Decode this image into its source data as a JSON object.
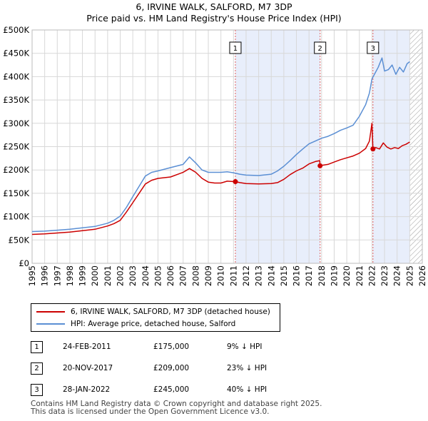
{
  "chart_data": {
    "type": "line",
    "title": "6, IRVINE WALK, SALFORD, M7 3DP",
    "subtitle": "Price paid vs. HM Land Registry's House Price Index (HPI)",
    "xlabel": "",
    "ylabel": "",
    "xlim": [
      1995,
      2026
    ],
    "ylim": [
      0,
      500000
    ],
    "y_ticks": [
      0,
      50000,
      100000,
      150000,
      200000,
      250000,
      300000,
      350000,
      400000,
      450000,
      500000
    ],
    "y_tick_labels": [
      "£0",
      "£50K",
      "£100K",
      "£150K",
      "£200K",
      "£250K",
      "£300K",
      "£350K",
      "£400K",
      "£450K",
      "£500K"
    ],
    "x_ticks": [
      1995,
      1996,
      1997,
      1998,
      1999,
      2000,
      2001,
      2002,
      2003,
      2004,
      2005,
      2006,
      2007,
      2008,
      2009,
      2010,
      2011,
      2012,
      2013,
      2014,
      2015,
      2016,
      2017,
      2018,
      2019,
      2020,
      2021,
      2022,
      2023,
      2024,
      2025,
      2026
    ],
    "x_tick_labels": [
      "1995",
      "1996",
      "1997",
      "1998",
      "1999",
      "2000",
      "2001",
      "2002",
      "2003",
      "2004",
      "2005",
      "2006",
      "2007",
      "2008",
      "2009",
      "2010",
      "2011",
      "2012",
      "2013",
      "2014",
      "2015",
      "2016",
      "2017",
      "2018",
      "2019",
      "2020",
      "2021",
      "2022",
      "2023",
      "2024",
      "2025",
      "2026"
    ],
    "grid": true,
    "shaded_periods": [
      [
        2011.15,
        2017.88
      ],
      [
        2022.08,
        2025.0
      ]
    ],
    "hatched_from": 2025.0,
    "series": [
      {
        "name": "6, IRVINE WALK, SALFORD, M7 3DP (detached house)",
        "color": "#cc0000",
        "x": [
          1995.0,
          1996.0,
          1997.0,
          1998.0,
          1999.0,
          2000.0,
          2001.0,
          2001.5,
          2002.0,
          2002.5,
          2003.0,
          2003.5,
          2004.0,
          2004.5,
          2005.0,
          2006.0,
          2007.0,
          2007.5,
          2008.0,
          2008.5,
          2009.0,
          2009.5,
          2010.0,
          2010.5,
          2011.15,
          2011.5,
          2012.0,
          2013.0,
          2014.0,
          2014.5,
          2015.0,
          2015.5,
          2016.0,
          2016.5,
          2017.0,
          2017.5,
          2017.85,
          2017.88,
          2018.0,
          2018.5,
          2019.0,
          2019.5,
          2020.0,
          2020.5,
          2021.0,
          2021.5,
          2021.8,
          2022.0,
          2022.08,
          2022.3,
          2022.6,
          2022.9,
          2023.2,
          2023.5,
          2023.8,
          2024.1,
          2024.4,
          2024.7,
          2025.0
        ],
        "y": [
          62000,
          63000,
          65000,
          67000,
          70000,
          73000,
          80000,
          85000,
          92000,
          110000,
          130000,
          150000,
          170000,
          178000,
          182000,
          185000,
          195000,
          203000,
          195000,
          182000,
          174000,
          172000,
          172000,
          176000,
          175000,
          173000,
          171000,
          170000,
          171000,
          173000,
          180000,
          190000,
          198000,
          204000,
          213000,
          218000,
          220000,
          209000,
          210000,
          212000,
          217000,
          222000,
          226000,
          230000,
          236000,
          246000,
          262000,
          300000,
          245000,
          248000,
          245000,
          258000,
          249000,
          245000,
          248000,
          246000,
          252000,
          255000,
          260000
        ]
      },
      {
        "name": "HPI: Average price, detached house, Salford",
        "color": "#5b8fd4",
        "x": [
          1995.0,
          1996.0,
          1997.0,
          1998.0,
          1999.0,
          2000.0,
          2001.0,
          2001.5,
          2002.0,
          2002.5,
          2003.0,
          2003.5,
          2004.0,
          2004.5,
          2005.0,
          2006.0,
          2007.0,
          2007.5,
          2008.0,
          2008.5,
          2009.0,
          2009.5,
          2010.0,
          2010.5,
          2011.0,
          2011.5,
          2012.0,
          2013.0,
          2014.0,
          2014.5,
          2015.0,
          2015.5,
          2016.0,
          2016.5,
          2017.0,
          2017.5,
          2018.0,
          2018.5,
          2019.0,
          2019.5,
          2020.0,
          2020.5,
          2021.0,
          2021.5,
          2021.8,
          2022.0,
          2022.2,
          2022.5,
          2022.8,
          2023.0,
          2023.3,
          2023.6,
          2023.9,
          2024.2,
          2024.5,
          2024.8,
          2025.0
        ],
        "y": [
          68000,
          69000,
          71000,
          73000,
          76000,
          79000,
          86000,
          92000,
          101000,
          120000,
          143000,
          165000,
          187000,
          195000,
          198000,
          205000,
          212000,
          228000,
          215000,
          200000,
          195000,
          195000,
          195000,
          196000,
          194000,
          191000,
          189000,
          188000,
          191000,
          198000,
          208000,
          220000,
          233000,
          245000,
          256000,
          262000,
          268000,
          272000,
          278000,
          285000,
          290000,
          296000,
          315000,
          340000,
          365000,
          395000,
          405000,
          420000,
          440000,
          412000,
          415000,
          425000,
          405000,
          420000,
          410000,
          428000,
          432000
        ]
      }
    ],
    "sales": [
      {
        "label": "1",
        "x": 2011.15,
        "y": 175000
      },
      {
        "label": "2",
        "x": 2017.88,
        "y": 209000
      },
      {
        "label": "3",
        "x": 2022.08,
        "y": 245000
      }
    ]
  },
  "legend": {
    "property_label": "6, IRVINE WALK, SALFORD, M7 3DP (detached house)",
    "hpi_label": "HPI: Average price, detached house, Salford"
  },
  "transactions": [
    {
      "num": "1",
      "date": "24-FEB-2011",
      "price": "£175,000",
      "hpi": "9% ↓ HPI"
    },
    {
      "num": "2",
      "date": "20-NOV-2017",
      "price": "£209,000",
      "hpi": "23% ↓ HPI"
    },
    {
      "num": "3",
      "date": "28-JAN-2022",
      "price": "£245,000",
      "hpi": "40% ↓ HPI"
    }
  ],
  "footer": {
    "line1": "Contains HM Land Registry data © Crown copyright and database right 2025.",
    "line2": "This data is licensed under the Open Government Licence v3.0."
  }
}
